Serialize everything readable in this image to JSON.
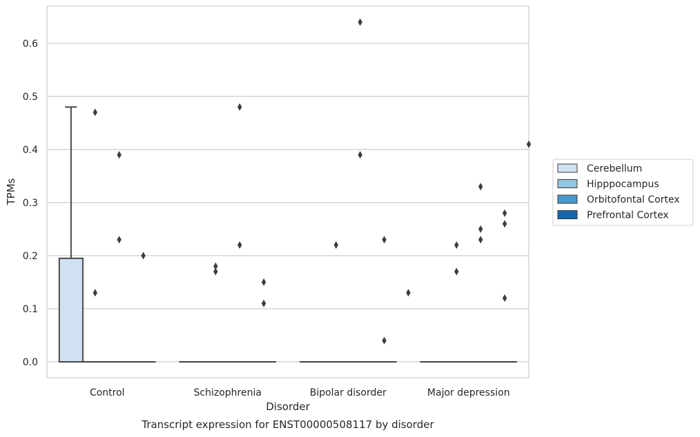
{
  "chart_data": {
    "type": "box",
    "caption": "Transcript expression for ENST00000508117 by disorder",
    "xlabel": "Disorder",
    "ylabel": "TPMs",
    "ylim": [
      -0.03,
      0.67
    ],
    "yticks": [
      0.0,
      0.1,
      0.2,
      0.3,
      0.4,
      0.5,
      0.6
    ],
    "grid": true,
    "legend_position": "right",
    "categories": [
      "Control",
      "Schizophrenia",
      "Bipolar disorder",
      "Major depression"
    ],
    "series": [
      {
        "name": "Cerebellum",
        "color": "#d0e1f2"
      },
      {
        "name": "Hipppocampus",
        "color": "#94c4df"
      },
      {
        "name": "Orbitofontal Cortex",
        "color": "#4a98c9"
      },
      {
        "name": "Prefrontal Cortex",
        "color": "#1764ab"
      }
    ],
    "boxes": [
      {
        "category": "Control",
        "series": "Cerebellum",
        "q1": 0.0,
        "median": 0.0,
        "q3": 0.195,
        "whisker_low": 0.0,
        "whisker_high": 0.48
      },
      {
        "category": "Control",
        "series": "Hipppocampus",
        "q1": 0.0,
        "median": 0.0,
        "q3": 0.0,
        "whisker_low": 0.0,
        "whisker_high": 0.0
      },
      {
        "category": "Control",
        "series": "Orbitofontal Cortex",
        "q1": 0.0,
        "median": 0.0,
        "q3": 0.0,
        "whisker_low": 0.0,
        "whisker_high": 0.0
      },
      {
        "category": "Control",
        "series": "Prefrontal Cortex",
        "q1": 0.0,
        "median": 0.0,
        "q3": 0.0,
        "whisker_low": 0.0,
        "whisker_high": 0.0
      },
      {
        "category": "Schizophrenia",
        "series": "Cerebellum",
        "q1": 0.0,
        "median": 0.0,
        "q3": 0.0,
        "whisker_low": 0.0,
        "whisker_high": 0.0
      },
      {
        "category": "Schizophrenia",
        "series": "Hipppocampus",
        "q1": 0.0,
        "median": 0.0,
        "q3": 0.0,
        "whisker_low": 0.0,
        "whisker_high": 0.0
      },
      {
        "category": "Schizophrenia",
        "series": "Orbitofontal Cortex",
        "q1": 0.0,
        "median": 0.0,
        "q3": 0.0,
        "whisker_low": 0.0,
        "whisker_high": 0.0
      },
      {
        "category": "Schizophrenia",
        "series": "Prefrontal Cortex",
        "q1": 0.0,
        "median": 0.0,
        "q3": 0.0,
        "whisker_low": 0.0,
        "whisker_high": 0.0
      },
      {
        "category": "Bipolar disorder",
        "series": "Cerebellum",
        "q1": 0.0,
        "median": 0.0,
        "q3": 0.0,
        "whisker_low": 0.0,
        "whisker_high": 0.0
      },
      {
        "category": "Bipolar disorder",
        "series": "Hipppocampus",
        "q1": 0.0,
        "median": 0.0,
        "q3": 0.0,
        "whisker_low": 0.0,
        "whisker_high": 0.0
      },
      {
        "category": "Bipolar disorder",
        "series": "Orbitofontal Cortex",
        "q1": 0.0,
        "median": 0.0,
        "q3": 0.0,
        "whisker_low": 0.0,
        "whisker_high": 0.0
      },
      {
        "category": "Bipolar disorder",
        "series": "Prefrontal Cortex",
        "q1": 0.0,
        "median": 0.0,
        "q3": 0.0,
        "whisker_low": 0.0,
        "whisker_high": 0.0
      },
      {
        "category": "Major depression",
        "series": "Cerebellum",
        "q1": 0.0,
        "median": 0.0,
        "q3": 0.0,
        "whisker_low": 0.0,
        "whisker_high": 0.0
      },
      {
        "category": "Major depression",
        "series": "Hipppocampus",
        "q1": 0.0,
        "median": 0.0,
        "q3": 0.0,
        "whisker_low": 0.0,
        "whisker_high": 0.0
      },
      {
        "category": "Major depression",
        "series": "Orbitofontal Cortex",
        "q1": 0.0,
        "median": 0.0,
        "q3": 0.0,
        "whisker_low": 0.0,
        "whisker_high": 0.0
      },
      {
        "category": "Major depression",
        "series": "Prefrontal Cortex",
        "q1": 0.0,
        "median": 0.0,
        "q3": 0.0,
        "whisker_low": 0.0,
        "whisker_high": 0.0
      }
    ],
    "outliers": [
      {
        "category": "Control",
        "series": "Hipppocampus",
        "values": [
          0.47,
          0.13
        ]
      },
      {
        "category": "Control",
        "series": "Orbitofontal Cortex",
        "values": [
          0.39,
          0.23
        ]
      },
      {
        "category": "Control",
        "series": "Prefrontal Cortex",
        "values": [
          0.2
        ]
      },
      {
        "category": "Schizophrenia",
        "series": "Hipppocampus",
        "values": [
          0.18,
          0.17
        ]
      },
      {
        "category": "Schizophrenia",
        "series": "Orbitofontal Cortex",
        "values": [
          0.48,
          0.22
        ]
      },
      {
        "category": "Schizophrenia",
        "series": "Prefrontal Cortex",
        "values": [
          0.15,
          0.11
        ]
      },
      {
        "category": "Bipolar disorder",
        "series": "Hipppocampus",
        "values": [
          0.22
        ]
      },
      {
        "category": "Bipolar disorder",
        "series": "Orbitofontal Cortex",
        "values": [
          0.64,
          0.39
        ]
      },
      {
        "category": "Bipolar disorder",
        "series": "Prefrontal Cortex",
        "values": [
          0.23,
          0.04
        ]
      },
      {
        "category": "Bipolar disorder",
        "series": "Prefrontal Cortex",
        "values": [
          0.13
        ],
        "offset": "right"
      },
      {
        "category": "Major depression",
        "series": "Hipppocampus",
        "values": [
          0.22,
          0.17
        ]
      },
      {
        "category": "Major depression",
        "series": "Orbitofontal Cortex",
        "values": [
          0.33,
          0.25,
          0.23
        ]
      },
      {
        "category": "Major depression",
        "series": "Prefrontal Cortex",
        "values": [
          0.28,
          0.26,
          0.12
        ]
      },
      {
        "category": "Major depression",
        "series": "Prefrontal Cortex",
        "values": [
          0.41
        ],
        "offset": "right"
      }
    ]
  }
}
